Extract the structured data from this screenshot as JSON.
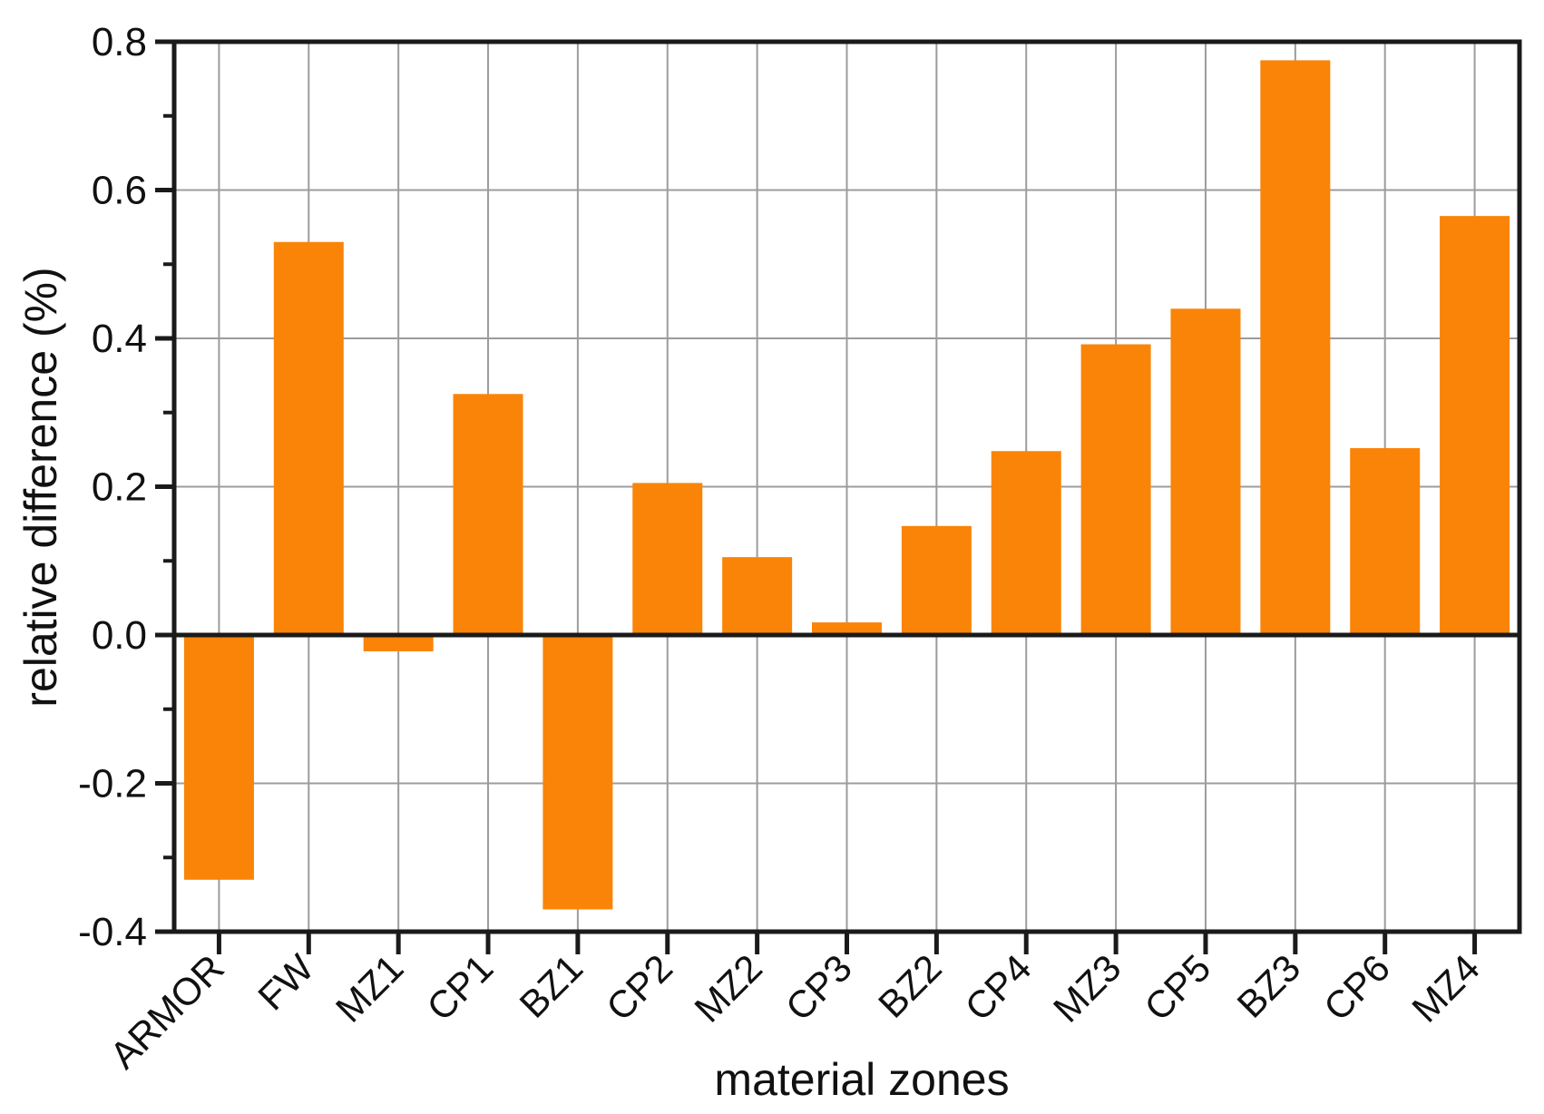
{
  "figure": {
    "background": "#ffffff"
  },
  "chart_data": {
    "type": "bar",
    "title": "",
    "xlabel": "material zones",
    "ylabel": "relative difference (%)",
    "categories": [
      "ARMOR",
      "FW",
      "MZ1",
      "CP1",
      "BZ1",
      "CP2",
      "MZ2",
      "CP3",
      "BZ2",
      "CP4",
      "MZ3",
      "CP5",
      "BZ3",
      "CP6",
      "MZ4"
    ],
    "values": [
      -0.33,
      0.53,
      -0.022,
      0.325,
      -0.37,
      0.205,
      0.105,
      0.017,
      0.147,
      0.248,
      0.392,
      0.44,
      0.775,
      0.252,
      0.565
    ],
    "ylim": [
      -0.4,
      0.8
    ],
    "yticks": [
      "0.8",
      "0.6",
      "0.4",
      "0.2",
      "0.0",
      "-0.2",
      "-0.4"
    ],
    "ytick_values": [
      0.8,
      0.6,
      0.4,
      0.2,
      0.0,
      -0.2,
      -0.4
    ],
    "ytick_minor_values": [
      0.7,
      0.5,
      0.3,
      0.1,
      -0.1,
      -0.3
    ],
    "grid": true,
    "legend": "none",
    "colors": {
      "bar": "#FA8407",
      "grid": "#9C9C9C",
      "axis": "#1A1A1A",
      "text": "#111111"
    }
  }
}
